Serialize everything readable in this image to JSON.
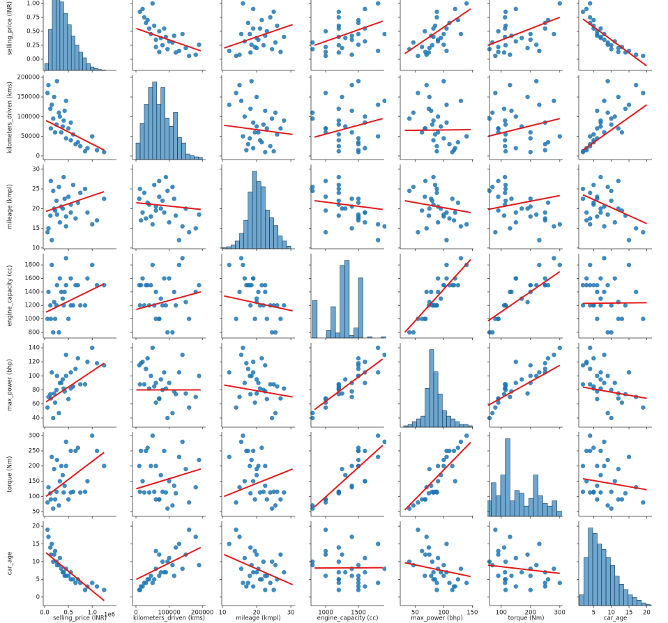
{
  "chart_data": {
    "type": "pairplot",
    "point_color": "#1f77b4",
    "line_color": "#e41a1c",
    "hist_color": "#1f77b4",
    "variables": [
      {
        "label": "selling_price (INR)",
        "x_label": "selling_price (INR)",
        "x_offset": "1e6",
        "xlim": [
          -30000,
          1510000
        ],
        "xticks": [
          {
            "value": 0,
            "label": "0.0"
          },
          {
            "value": 500000,
            "label": "0.5"
          },
          {
            "value": 1000000,
            "label": "1.0"
          }
        ],
        "ylim": [
          -200000,
          1310000
        ],
        "yticks": [
          {
            "value": 0,
            "label": "0.00"
          },
          {
            "value": 250000,
            "label": "0.25"
          },
          {
            "value": 500000,
            "label": "0.50"
          },
          {
            "value": 750000,
            "label": "0.75"
          },
          {
            "value": 1000000,
            "label": "1.00"
          }
        ],
        "hist": {
          "bins": [
            0,
            80000,
            160000,
            240000,
            320000,
            400000,
            480000,
            560000,
            640000,
            720000,
            800000,
            880000,
            960000,
            1040000,
            1120000,
            1200000,
            1280000
          ],
          "counts": [
            30,
            180,
            320,
            340,
            300,
            250,
            200,
            150,
            110,
            80,
            55,
            30,
            15,
            8,
            4,
            2
          ]
        }
      },
      {
        "label": "kilometers_driven (kms)",
        "x_label": "kilometers_driven (kms)",
        "xlim": [
          -10500,
          210000
        ],
        "xticks": [
          0,
          100000,
          200000
        ],
        "ylim": [
          -9000,
          205000
        ],
        "yticks": [
          0,
          50000,
          100000,
          150000,
          200000
        ],
        "hist": {
          "bins": [
            0,
            12500,
            25000,
            37500,
            50000,
            62500,
            75000,
            87500,
            100000,
            112500,
            125000,
            137500,
            150000,
            162500,
            175000,
            187500,
            200000
          ],
          "counts": [
            60,
            130,
            200,
            260,
            280,
            200,
            260,
            150,
            120,
            170,
            80,
            60,
            20,
            15,
            10,
            8
          ]
        }
      },
      {
        "label": "mileage (kmpl)",
        "x_label": "mileage (kmpl)",
        "xlim": [
          9.8,
          31.2
        ],
        "xticks": [
          10,
          20,
          30
        ],
        "ylim": [
          9.8,
          31.2
        ],
        "yticks": [
          10,
          15,
          20,
          25,
          30
        ],
        "hist": {
          "bins": [
            10,
            11.25,
            12.5,
            13.75,
            15,
            16.25,
            17.5,
            18.75,
            20,
            21.25,
            22.5,
            23.75,
            25,
            26.25,
            27.5,
            28.75,
            30
          ],
          "counts": [
            5,
            8,
            15,
            30,
            60,
            110,
            220,
            300,
            260,
            240,
            150,
            120,
            90,
            50,
            30,
            10
          ]
        }
      },
      {
        "label": "engine_capacity (cc)",
        "x_label": "engine_capacity (cc)",
        "xlim": [
          776,
          1894
        ],
        "xticks": [
          1000,
          1500
        ],
        "ylim": [
          717,
          1967
        ],
        "yticks": [
          800,
          1000,
          1200,
          1400,
          1600,
          1800
        ],
        "hist": {
          "bins": [
            800,
            870,
            940,
            1010,
            1080,
            1150,
            1220,
            1290,
            1360,
            1430,
            1500,
            1570,
            1640,
            1710,
            1780,
            1850,
            1920
          ],
          "counts": [
            300,
            0,
            0,
            60,
            250,
            40,
            580,
            620,
            20,
            80,
            480,
            0,
            10,
            0,
            0,
            10
          ]
        }
      },
      {
        "label": "max_power (bhp)",
        "x_label": "max_power (bhp)",
        "xlim": [
          24,
          152
        ],
        "xticks": [
          50,
          100,
          150
        ],
        "ylim": [
          27,
          147
        ],
        "yticks": [
          40,
          60,
          80,
          100,
          120,
          140
        ],
        "hist": {
          "bins": [
            30,
            37.5,
            45,
            52.5,
            60,
            67.5,
            75,
            82.5,
            90,
            97.5,
            105,
            112.5,
            120,
            127.5,
            135,
            142.5,
            150
          ],
          "counts": [
            5,
            10,
            20,
            30,
            40,
            140,
            280,
            200,
            120,
            60,
            40,
            30,
            20,
            10,
            10,
            5
          ]
        }
      },
      {
        "label": "torque (Nm)",
        "x_label": "torque (Nm)",
        "xlim": [
          60,
          310
        ],
        "xticks": [
          100,
          200,
          300
        ],
        "ylim": [
          34,
          312
        ],
        "yticks": [
          50,
          100,
          150,
          200,
          250,
          300
        ],
        "hist": {
          "bins": [
            50,
            66,
            82,
            98,
            114,
            130,
            146,
            162,
            178,
            194,
            210,
            226,
            242,
            258,
            274,
            290,
            306
          ],
          "counts": [
            60,
            130,
            80,
            160,
            300,
            60,
            100,
            90,
            40,
            70,
            160,
            80,
            50,
            40,
            60,
            20
          ]
        }
      },
      {
        "label": "car_age",
        "x_label": "car_age",
        "xlim": [
          0.8,
          21.5
        ],
        "xticks": [
          5,
          10,
          15,
          20
        ],
        "ylim": [
          -2.4,
          21.4
        ],
        "yticks": [
          0,
          5,
          10,
          15,
          20
        ],
        "hist": {
          "bins": [
            1,
            2.25,
            3.5,
            4.75,
            6,
            7.25,
            8.5,
            9.75,
            11,
            12.25,
            13.5,
            14.75,
            16,
            17.25,
            18.5,
            19.75,
            21
          ],
          "counts": [
            40,
            180,
            290,
            270,
            230,
            210,
            180,
            150,
            110,
            80,
            60,
            40,
            30,
            20,
            10,
            5
          ]
        }
      }
    ],
    "observations": [
      [
        120000,
        120000,
        18.2,
        1200,
        74,
        110,
        14
      ],
      [
        250000,
        80000,
        22.0,
        1200,
        80,
        115,
        10
      ],
      [
        350000,
        60000,
        20.5,
        1400,
        90,
        200,
        8
      ],
      [
        450000,
        45000,
        18.0,
        1500,
        100,
        200,
        6
      ],
      [
        550000,
        40000,
        21.0,
        1200,
        82,
        113,
        5
      ],
      [
        650000,
        30000,
        17.5,
        1500,
        110,
        250,
        4
      ],
      [
        750000,
        25000,
        24.0,
        1200,
        88,
        113,
        4
      ],
      [
        900000,
        20000,
        19.0,
        1600,
        120,
        150,
        3
      ],
      [
        1100000,
        15000,
        17.0,
        1500,
        118,
        250,
        3
      ],
      [
        1250000,
        10000,
        22.5,
        1500,
        115,
        200,
        2
      ],
      [
        80000,
        180000,
        15.0,
        1400,
        70,
        130,
        17
      ],
      [
        200000,
        150000,
        20.0,
        1250,
        75,
        190,
        12
      ],
      [
        300000,
        110000,
        25.5,
        800,
        47,
        70,
        9
      ],
      [
        400000,
        90000,
        28.0,
        1200,
        82,
        113,
        7
      ],
      [
        150000,
        130000,
        12.0,
        1800,
        105,
        230,
        15
      ],
      [
        500000,
        70000,
        23.0,
        1000,
        67,
        90,
        6
      ],
      [
        600000,
        55000,
        26.0,
        1200,
        85,
        115,
        5
      ],
      [
        320000,
        100000,
        16.5,
        1600,
        90,
        150,
        11
      ],
      [
        220000,
        60000,
        19.5,
        1000,
        62,
        90,
        13
      ],
      [
        700000,
        35000,
        21.5,
        1500,
        125,
        260,
        5
      ],
      [
        450000,
        140000,
        15.5,
        1900,
        130,
        280,
        8
      ],
      [
        180000,
        95000,
        24.5,
        800,
        40,
        60,
        10
      ],
      [
        380000,
        75000,
        20.0,
        1300,
        95,
        170,
        7
      ],
      [
        1000000,
        50000,
        16.0,
        1800,
        140,
        300,
        4
      ],
      [
        60000,
        160000,
        14.0,
        1000,
        55,
        80,
        19
      ],
      [
        850000,
        12000,
        25.0,
        1200,
        88,
        115,
        2
      ],
      [
        260000,
        190000,
        18.5,
        1500,
        100,
        220,
        9
      ],
      [
        420000,
        115000,
        22.5,
        1400,
        78,
        135,
        6
      ],
      [
        130000,
        70000,
        27.0,
        1000,
        68,
        90,
        12
      ],
      [
        550000,
        85000,
        19.0,
        1600,
        105,
        250,
        7
      ]
    ],
    "fits": [
      [
        null,
        {
          "x": [
            1000,
            195000
          ],
          "y": [
            550000,
            150000
          ]
        },
        {
          "x": [
            10.5,
            30.5
          ],
          "y": [
            200000,
            620000
          ]
        },
        {
          "x": [
            830,
            1870
          ],
          "y": [
            250000,
            680000
          ]
        },
        {
          "x": [
            32,
            147
          ],
          "y": [
            100000,
            900000
          ]
        },
        {
          "x": [
            55,
            300
          ],
          "y": [
            250000,
            750000
          ]
        },
        {
          "x": [
            2,
            20
          ],
          "y": [
            720000,
            -120000
          ]
        }
      ],
      [
        {
          "x": [
            30000,
            1250000
          ],
          "y": [
            90000,
            15000
          ]
        },
        null,
        {
          "x": [
            10.5,
            30.5
          ],
          "y": [
            78000,
            55000
          ]
        },
        {
          "x": [
            830,
            1870
          ],
          "y": [
            48000,
            95000
          ]
        },
        {
          "x": [
            32,
            147
          ],
          "y": [
            65000,
            67000
          ]
        },
        {
          "x": [
            55,
            300
          ],
          "y": [
            50000,
            95000
          ]
        },
        {
          "x": [
            2,
            20
          ],
          "y": [
            15000,
            130000
          ]
        }
      ],
      [
        {
          "x": [
            30000,
            1250000
          ],
          "y": [
            19.3,
            24.3
          ]
        },
        {
          "x": [
            1000,
            195000
          ],
          "y": [
            21.5,
            19.8
          ]
        },
        null,
        {
          "x": [
            830,
            1870
          ],
          "y": [
            22,
            19.8
          ]
        },
        {
          "x": [
            32,
            147
          ],
          "y": [
            22,
            19
          ]
        },
        {
          "x": [
            55,
            300
          ],
          "y": [
            19.8,
            23.3
          ]
        },
        {
          "x": [
            2,
            20
          ],
          "y": [
            23.5,
            16.2
          ]
        }
      ],
      [
        {
          "x": [
            30000,
            1250000
          ],
          "y": [
            1100,
            1520
          ]
        },
        {
          "x": [
            1000,
            195000
          ],
          "y": [
            1140,
            1400
          ]
        },
        {
          "x": [
            10.5,
            30.5
          ],
          "y": [
            1340,
            1120
          ]
        },
        null,
        {
          "x": [
            32,
            147
          ],
          "y": [
            800,
            1880
          ]
        },
        {
          "x": [
            55,
            300
          ],
          "y": [
            970,
            1700
          ]
        },
        {
          "x": [
            2,
            20
          ],
          "y": [
            1230,
            1240
          ]
        }
      ],
      [
        {
          "x": [
            30000,
            1250000
          ],
          "y": [
            63,
            118
          ]
        },
        {
          "x": [
            1000,
            195000
          ],
          "y": [
            80,
            80
          ]
        },
        {
          "x": [
            10.5,
            30.5
          ],
          "y": [
            87,
            70
          ]
        },
        {
          "x": [
            830,
            1870
          ],
          "y": [
            52,
            124
          ]
        },
        null,
        {
          "x": [
            55,
            300
          ],
          "y": [
            58,
            115
          ]
        },
        {
          "x": [
            2,
            20
          ],
          "y": [
            84,
            68
          ]
        }
      ],
      [
        {
          "x": [
            30000,
            1250000
          ],
          "y": [
            100,
            245
          ]
        },
        {
          "x": [
            1000,
            195000
          ],
          "y": [
            125,
            190
          ]
        },
        {
          "x": [
            10.5,
            30.5
          ],
          "y": [
            100,
            190
          ]
        },
        {
          "x": [
            830,
            1870
          ],
          "y": [
            65,
            268
          ]
        },
        {
          "x": [
            32,
            147
          ],
          "y": [
            55,
            278
          ]
        },
        null,
        {
          "x": [
            2,
            20
          ],
          "y": [
            158,
            122
          ]
        }
      ],
      [
        {
          "x": [
            30000,
            1250000
          ],
          "y": [
            12.5,
            -1
          ]
        },
        {
          "x": [
            1000,
            195000
          ],
          "y": [
            5,
            14
          ]
        },
        {
          "x": [
            10.5,
            30.5
          ],
          "y": [
            12,
            3.5
          ]
        },
        {
          "x": [
            830,
            1870
          ],
          "y": [
            8.2,
            8.3
          ]
        },
        {
          "x": [
            32,
            147
          ],
          "y": [
            9.7,
            5.8
          ]
        },
        {
          "x": [
            55,
            300
          ],
          "y": [
            9,
            6.7
          ]
        },
        null
      ]
    ]
  }
}
